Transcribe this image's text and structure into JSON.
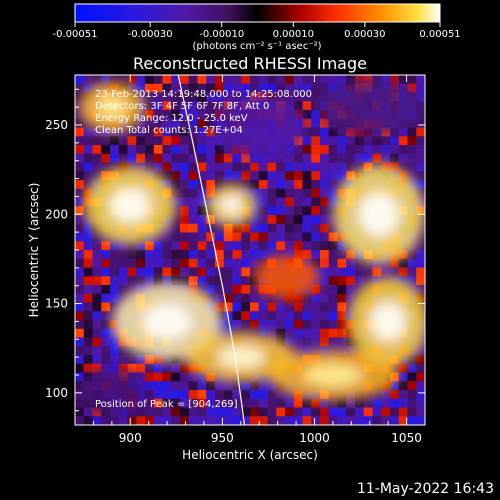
{
  "chart_data": {
    "type": "heatmap",
    "title": "Reconstructed RHESSI Image",
    "xlabel": "Heliocentric X (arcsec)",
    "ylabel": "Heliocentric Y (arcsec)",
    "xlim": [
      870,
      1060
    ],
    "ylim": [
      82,
      278
    ],
    "x_ticks": [
      900,
      950,
      1000,
      1050
    ],
    "y_ticks": [
      100,
      150,
      200,
      250
    ],
    "colorbar": {
      "range": [
        -0.00051,
        0.00051
      ],
      "ticks": [
        -0.00051,
        -0.0003,
        -0.0001,
        0.0001,
        0.0003,
        0.00051
      ],
      "tick_labels": [
        "-0.00051",
        "-0.00030",
        "-0.00010",
        "0.00010",
        "0.00030",
        "0.00051"
      ],
      "unit_label": "(photons cm⁻² s⁻¹ asec⁻²)"
    },
    "annotations": [
      "23-Feb-2013 14:19:48.000 to 14:25:08.000",
      "Detectors: 3F 4F 5F 6F 7F 8F, Att 0",
      "Energy Range: 12.0 - 25.0 keV",
      "Clean    Total counts: 1.27E+04"
    ],
    "peak_text": "Position of Peak = [904,269]",
    "limb_curve": [
      [
        926,
        278
      ],
      [
        934,
        240
      ],
      [
        942,
        200
      ],
      [
        950,
        160
      ],
      [
        957,
        120
      ],
      [
        962,
        82
      ]
    ],
    "intensity_regions": [
      {
        "x": 900,
        "y": 205,
        "rx": 25,
        "ry": 22,
        "value": 0.00045
      },
      {
        "x": 920,
        "y": 140,
        "rx": 30,
        "ry": 22,
        "value": 0.00048
      },
      {
        "x": 955,
        "y": 205,
        "rx": 14,
        "ry": 12,
        "value": 0.00044
      },
      {
        "x": 960,
        "y": 120,
        "rx": 30,
        "ry": 14,
        "value": 0.00042
      },
      {
        "x": 1035,
        "y": 200,
        "rx": 25,
        "ry": 28,
        "value": 0.00046
      },
      {
        "x": 1040,
        "y": 140,
        "rx": 22,
        "ry": 25,
        "value": 0.00044
      },
      {
        "x": 1010,
        "y": 110,
        "rx": 35,
        "ry": 14,
        "value": 0.0004
      },
      {
        "x": 890,
        "y": 260,
        "rx": 18,
        "ry": 14,
        "value": 0.0004
      },
      {
        "x": 985,
        "y": 165,
        "rx": 18,
        "ry": 12,
        "value": 0.00028
      },
      {
        "x": 970,
        "y": 250,
        "rx": 25,
        "ry": 18,
        "value": -0.00018
      },
      {
        "x": 1030,
        "y": 260,
        "rx": 28,
        "ry": 16,
        "value": -0.00012
      },
      {
        "x": 890,
        "y": 100,
        "rx": 18,
        "ry": 14,
        "value": -0.0001
      }
    ]
  },
  "footer": {
    "date": "11-May-2022 16:43"
  }
}
